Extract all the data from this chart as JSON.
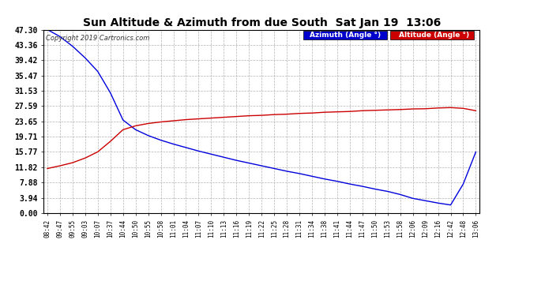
{
  "title": "Sun Altitude & Azimuth from due South  Sat Jan 19  13:06",
  "copyright": "Copyright 2019 Cartronics.com",
  "background_color": "#ffffff",
  "plot_bg_color": "#ffffff",
  "grid_color": "#aaaaaa",
  "legend_azimuth_label": "Azimuth (Angle °)",
  "legend_altitude_label": "Altitude (Angle °)",
  "legend_azimuth_bg": "#0000cc",
  "legend_altitude_bg": "#cc0000",
  "legend_text_color": "#ffffff",
  "azimuth_line_color": "#0000dd",
  "altitude_line_color": "#cc0000",
  "yticks": [
    0.0,
    3.94,
    7.88,
    11.82,
    15.77,
    19.71,
    23.65,
    27.59,
    31.53,
    35.47,
    39.42,
    43.36,
    47.3
  ],
  "ylim": [
    0.0,
    47.3
  ],
  "x_labels": [
    "08:42",
    "09:47",
    "09:55",
    "09:03",
    "10:07",
    "10:37",
    "10:44",
    "10:50",
    "10:55",
    "10:58",
    "11:01",
    "11:04",
    "11:07",
    "11:10",
    "11:13",
    "11:16",
    "11:19",
    "11:22",
    "11:25",
    "11:28",
    "11:31",
    "11:34",
    "11:38",
    "11:41",
    "11:44",
    "11:47",
    "11:50",
    "11:53",
    "11:58",
    "12:06",
    "12:09",
    "12:16",
    "12:42",
    "12:48",
    "13:06"
  ],
  "azimuth_values": [
    47.3,
    45.5,
    43.0,
    40.0,
    36.5,
    31.0,
    24.0,
    21.5,
    20.0,
    18.8,
    17.8,
    16.9,
    16.0,
    15.2,
    14.4,
    13.6,
    12.9,
    12.2,
    11.5,
    10.8,
    10.2,
    9.5,
    8.8,
    8.2,
    7.5,
    6.9,
    6.2,
    5.6,
    4.8,
    3.8,
    3.2,
    2.6,
    2.1,
    7.5,
    15.77
  ],
  "altitude_values": [
    11.5,
    12.2,
    13.0,
    14.2,
    15.8,
    18.5,
    21.5,
    22.5,
    23.1,
    23.5,
    23.8,
    24.1,
    24.3,
    24.5,
    24.7,
    24.9,
    25.1,
    25.2,
    25.4,
    25.5,
    25.7,
    25.8,
    26.0,
    26.1,
    26.2,
    26.4,
    26.5,
    26.6,
    26.7,
    26.85,
    26.9,
    27.1,
    27.2,
    27.0,
    26.4
  ]
}
